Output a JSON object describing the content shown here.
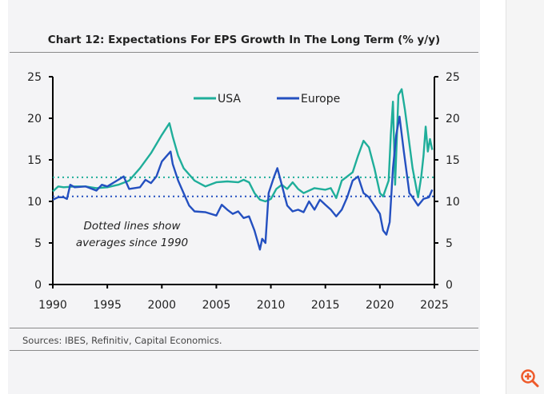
{
  "chart_data": {
    "type": "line",
    "title": "Chart 12: Expectations For EPS Growth In The Long Term (% y/y)",
    "xlabel": "",
    "ylabel": "",
    "xlim": [
      1990,
      2025
    ],
    "ylim": [
      0,
      25
    ],
    "x_ticks": [
      "1990",
      "1995",
      "2000",
      "2005",
      "2010",
      "2015",
      "2020",
      "2025"
    ],
    "y_ticks": [
      "0",
      "5",
      "10",
      "15",
      "20",
      "25"
    ],
    "legend_position": "top-center",
    "annotation": [
      "Dotted lines show",
      "averages since 1990"
    ],
    "averages": {
      "USA": 12.9,
      "Europe": 10.6
    },
    "series": [
      {
        "name": "USA",
        "color": "#1fae9a",
        "points": [
          [
            1990,
            11.2
          ],
          [
            1990.5,
            11.8
          ],
          [
            1991,
            11.7
          ],
          [
            1992,
            11.8
          ],
          [
            1993,
            11.8
          ],
          [
            1994,
            11.6
          ],
          [
            1995,
            11.7
          ],
          [
            1996,
            12.0
          ],
          [
            1997,
            12.5
          ],
          [
            1998,
            14.0
          ],
          [
            1999,
            15.8
          ],
          [
            2000,
            18.0
          ],
          [
            2000.7,
            19.4
          ],
          [
            2001,
            17.8
          ],
          [
            2001.5,
            15.5
          ],
          [
            2002,
            14.0
          ],
          [
            2003,
            12.5
          ],
          [
            2004,
            11.8
          ],
          [
            2005,
            12.3
          ],
          [
            2006,
            12.4
          ],
          [
            2007,
            12.3
          ],
          [
            2007.5,
            12.6
          ],
          [
            2008,
            12.3
          ],
          [
            2008.5,
            11.0
          ],
          [
            2009,
            10.2
          ],
          [
            2009.5,
            10.0
          ],
          [
            2010,
            10.3
          ],
          [
            2010.5,
            11.5
          ],
          [
            2011,
            12.0
          ],
          [
            2011.5,
            11.5
          ],
          [
            2012,
            12.3
          ],
          [
            2012.5,
            11.5
          ],
          [
            2013,
            11.0
          ],
          [
            2014,
            11.6
          ],
          [
            2015,
            11.4
          ],
          [
            2015.5,
            11.6
          ],
          [
            2016,
            10.4
          ],
          [
            2016.5,
            12.5
          ],
          [
            2017,
            13.0
          ],
          [
            2017.5,
            13.5
          ],
          [
            2018,
            15.5
          ],
          [
            2018.5,
            17.3
          ],
          [
            2019,
            16.5
          ],
          [
            2019.5,
            14.0
          ],
          [
            2020,
            11.0
          ],
          [
            2020.3,
            10.6
          ],
          [
            2020.8,
            12.5
          ],
          [
            2021,
            18.0
          ],
          [
            2021.2,
            22.0
          ],
          [
            2021.4,
            12.0
          ],
          [
            2021.7,
            22.8
          ],
          [
            2022,
            23.5
          ],
          [
            2022.3,
            21.0
          ],
          [
            2022.6,
            18.0
          ],
          [
            2023,
            14.0
          ],
          [
            2023.5,
            10.5
          ],
          [
            2023.8,
            13.0
          ],
          [
            2024,
            15.5
          ],
          [
            2024.2,
            19.0
          ],
          [
            2024.4,
            16.0
          ],
          [
            2024.6,
            17.5
          ],
          [
            2024.8,
            16.2
          ]
        ]
      },
      {
        "name": "Europe",
        "color": "#2450c0",
        "points": [
          [
            1990,
            10.2
          ],
          [
            1990.5,
            10.5
          ],
          [
            1991,
            10.5
          ],
          [
            1991.3,
            10.3
          ],
          [
            1991.6,
            12.0
          ],
          [
            1992,
            11.7
          ],
          [
            1993,
            11.8
          ],
          [
            1994,
            11.3
          ],
          [
            1994.5,
            12.0
          ],
          [
            1995,
            11.8
          ],
          [
            1996,
            12.6
          ],
          [
            1996.5,
            13.0
          ],
          [
            1997,
            11.5
          ],
          [
            1998,
            11.7
          ],
          [
            1998.5,
            12.6
          ],
          [
            1999,
            12.2
          ],
          [
            1999.5,
            13.0
          ],
          [
            2000,
            14.8
          ],
          [
            2000.8,
            16.0
          ],
          [
            2001,
            14.5
          ],
          [
            2001.5,
            12.5
          ],
          [
            2002,
            11.0
          ],
          [
            2002.5,
            9.5
          ],
          [
            2003,
            8.8
          ],
          [
            2004,
            8.7
          ],
          [
            2005,
            8.3
          ],
          [
            2005.5,
            9.6
          ],
          [
            2006,
            9.0
          ],
          [
            2006.5,
            8.5
          ],
          [
            2007,
            8.8
          ],
          [
            2007.5,
            8.0
          ],
          [
            2008,
            8.2
          ],
          [
            2008.5,
            6.5
          ],
          [
            2009,
            4.2
          ],
          [
            2009.2,
            5.5
          ],
          [
            2009.5,
            5.0
          ],
          [
            2009.8,
            11.0
          ],
          [
            2010.3,
            13.0
          ],
          [
            2010.6,
            14.0
          ],
          [
            2011,
            12.0
          ],
          [
            2011.5,
            9.5
          ],
          [
            2012,
            8.8
          ],
          [
            2012.5,
            9.0
          ],
          [
            2013,
            8.7
          ],
          [
            2013.5,
            10.0
          ],
          [
            2014,
            9.0
          ],
          [
            2014.5,
            10.2
          ],
          [
            2015,
            9.6
          ],
          [
            2015.5,
            9.0
          ],
          [
            2016,
            8.2
          ],
          [
            2016.5,
            9.0
          ],
          [
            2017,
            10.5
          ],
          [
            2017.5,
            12.5
          ],
          [
            2018,
            13.0
          ],
          [
            2018.5,
            11.0
          ],
          [
            2019,
            10.5
          ],
          [
            2019.5,
            9.5
          ],
          [
            2020,
            8.5
          ],
          [
            2020.3,
            6.5
          ],
          [
            2020.6,
            6.0
          ],
          [
            2020.9,
            7.5
          ],
          [
            2021.2,
            14.0
          ],
          [
            2021.5,
            18.0
          ],
          [
            2021.8,
            20.2
          ],
          [
            2022.2,
            16.0
          ],
          [
            2022.7,
            11.0
          ],
          [
            2023,
            10.5
          ],
          [
            2023.5,
            9.5
          ],
          [
            2024,
            10.3
          ],
          [
            2024.5,
            10.5
          ],
          [
            2024.8,
            11.4
          ]
        ]
      }
    ],
    "source": "Sources: IBES, Refinitiv, Capital Economics."
  }
}
